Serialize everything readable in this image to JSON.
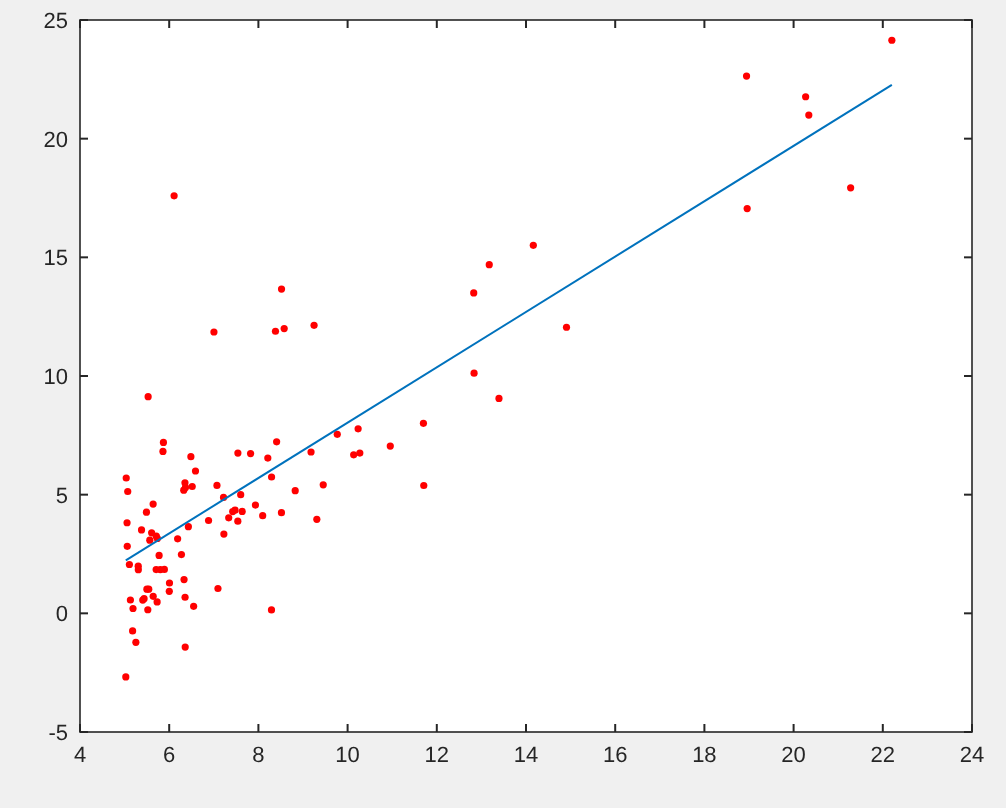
{
  "chart_data": {
    "type": "scatter",
    "xlim": [
      4,
      24
    ],
    "ylim": [
      -5,
      25
    ],
    "xticks": [
      4,
      6,
      8,
      10,
      12,
      14,
      16,
      18,
      20,
      22,
      24
    ],
    "yticks": [
      -5,
      0,
      5,
      10,
      15,
      20,
      25
    ],
    "grid": false,
    "series": [
      {
        "color": "#ff0000",
        "marker": "circle",
        "x": [
          6.1101,
          5.5277,
          8.5186,
          7.0032,
          5.8598,
          8.3829,
          7.4764,
          8.5781,
          6.4862,
          5.0546,
          5.7107,
          14.164,
          5.734,
          8.4084,
          5.6407,
          5.3794,
          6.3654,
          5.1301,
          6.4296,
          7.0708,
          6.1891,
          20.27,
          5.4901,
          6.3261,
          5.5649,
          18.945,
          12.828,
          10.957,
          13.176,
          22.203,
          5.2524,
          6.5894,
          9.2482,
          5.8918,
          8.2111,
          7.9334,
          8.0959,
          5.6063,
          12.836,
          6.3534,
          5.4069,
          6.8825,
          11.708,
          5.7737,
          7.8247,
          7.0931,
          5.0702,
          5.8014,
          11.7,
          5.5416,
          7.5402,
          5.3077,
          7.4239,
          7.6031,
          6.3328,
          6.3589,
          6.2742,
          5.6397,
          9.3102,
          9.4536,
          8.8254,
          5.1793,
          21.279,
          14.908,
          18.959,
          7.2182,
          8.2951,
          10.236,
          5.4994,
          20.341,
          10.136,
          7.3345,
          6.0062,
          7.2259,
          5.0269,
          6.5479,
          7.5386,
          5.0365,
          10.274,
          5.1077,
          5.7292,
          5.1884,
          6.3557,
          9.7687,
          6.5159,
          8.5172,
          9.1802,
          6.002,
          5.5204,
          5.0594,
          5.7077,
          7.6366,
          5.8707,
          5.3054,
          8.2934,
          13.394,
          5.4369
        ],
        "values": [
          17.592,
          9.1302,
          13.662,
          11.854,
          6.8233,
          11.886,
          4.3483,
          12,
          6.5987,
          3.8166,
          3.2522,
          15.505,
          3.1551,
          7.2258,
          0.71618,
          3.5129,
          5.3048,
          0.56077,
          3.6518,
          5.3893,
          3.1386,
          21.767,
          4.263,
          5.1875,
          3.0825,
          22.638,
          13.501,
          7.0467,
          14.692,
          24.147,
          -1.22,
          5.9966,
          12.134,
          1.8495,
          6.5426,
          4.5623,
          4.1164,
          3.3928,
          10.117,
          5.4974,
          0.55657,
          3.9115,
          5.3854,
          2.4406,
          6.7318,
          1.0463,
          5.1337,
          1.844,
          8.0043,
          1.0179,
          6.7504,
          1.8396,
          4.2885,
          4.9981,
          1.4233,
          -1.4211,
          2.4756,
          4.6042,
          3.9624,
          5.4141,
          5.1694,
          -0.74279,
          17.929,
          12.054,
          17.054,
          4.8852,
          5.7442,
          7.7754,
          1.0173,
          20.992,
          6.6799,
          4.0259,
          1.2784,
          3.3411,
          -2.6807,
          0.29678,
          3.8845,
          5.7014,
          6.7526,
          2.0576,
          0.47953,
          0.20421,
          0.67861,
          7.5435,
          5.3436,
          4.2415,
          6.7981,
          0.92695,
          0.152,
          2.8214,
          1.8451,
          4.2959,
          7.2029,
          1.9869,
          0.14454,
          9.0551,
          0.61705
        ]
      },
      {
        "type": "line",
        "color": "#0072bd",
        "marker": "none",
        "line_style": "solid",
        "x": [
          5.0269,
          22.203
        ],
        "values": [
          2.233,
          22.267
        ]
      }
    ]
  }
}
